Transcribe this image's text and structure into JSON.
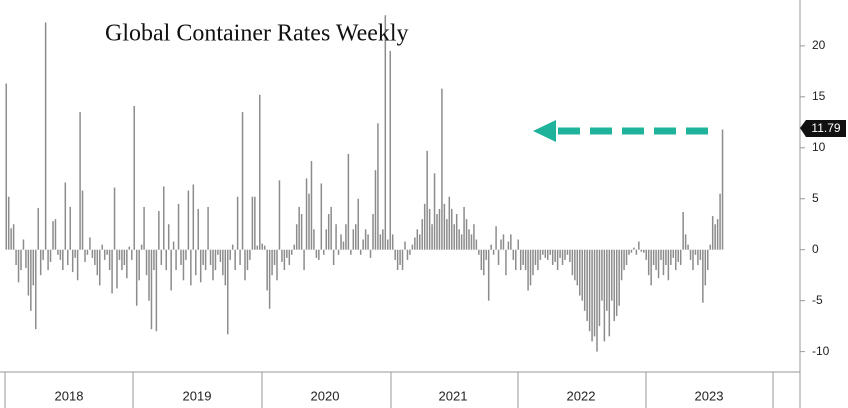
{
  "chart_data": {
    "type": "bar",
    "title": "Global Container Rates Weekly",
    "color": "#8c8c8c",
    "categories": [
      null,
      null,
      null,
      null,
      null,
      null,
      null,
      null,
      null,
      null,
      null,
      null,
      null,
      null,
      null,
      null,
      null,
      null,
      null,
      null,
      null,
      null,
      null,
      null,
      null,
      null,
      "2018",
      null,
      null,
      null,
      null,
      null,
      null,
      null,
      null,
      null,
      null,
      null,
      null,
      null,
      null,
      null,
      null,
      null,
      null,
      null,
      null,
      null,
      null,
      null,
      null,
      null,
      null,
      null,
      null,
      null,
      null,
      null,
      null,
      null,
      null,
      null,
      null,
      null,
      null,
      null,
      null,
      null,
      null,
      null,
      null,
      null,
      null,
      null,
      null,
      null,
      null,
      null,
      "2019",
      null,
      null,
      null,
      null,
      null,
      null,
      null,
      null,
      null,
      null,
      null,
      null,
      null,
      null,
      null,
      null,
      null,
      null,
      null,
      null,
      null,
      null,
      null,
      null,
      null,
      null,
      null,
      null,
      null,
      null,
      null,
      null,
      null,
      null,
      null,
      null,
      null,
      null,
      null,
      null,
      null,
      null,
      null,
      null,
      null,
      null,
      null,
      null,
      null,
      null,
      null,
      "2020",
      null,
      null,
      null,
      null,
      null,
      null,
      null,
      null,
      null,
      null,
      null,
      null,
      null,
      null,
      null,
      null,
      null,
      null,
      null,
      null,
      null,
      null,
      null,
      null,
      null,
      null,
      null,
      null,
      null,
      null,
      null,
      null,
      null,
      null,
      null,
      null,
      null,
      null,
      null,
      null,
      null,
      null,
      null,
      null,
      null,
      null,
      null,
      null,
      null,
      null,
      null,
      "2021",
      null,
      null,
      null,
      null,
      null,
      null,
      null,
      null,
      null,
      null,
      null,
      null,
      null,
      null,
      null,
      null,
      null,
      null,
      null,
      null,
      null,
      null,
      null,
      null,
      null,
      null,
      null,
      null,
      null,
      null,
      null,
      null,
      null,
      null,
      null,
      null,
      null,
      null,
      null,
      null,
      null,
      null,
      null,
      null,
      null,
      null,
      null,
      null,
      null,
      null,
      null,
      "2022",
      null,
      null,
      null,
      null,
      null,
      null,
      null,
      null,
      null,
      null,
      null,
      null,
      null,
      null,
      null,
      null,
      null,
      null,
      null,
      null,
      null,
      null,
      null,
      null,
      null,
      null,
      null,
      null,
      null,
      null,
      null,
      null,
      null,
      null,
      null,
      null,
      null,
      null,
      null,
      null,
      null,
      null,
      null,
      null,
      null,
      null,
      null,
      null,
      null,
      null,
      null,
      "2023",
      null,
      null,
      null,
      null,
      null
    ],
    "values": [
      16.3,
      5.2,
      2.1,
      2.5,
      -1.5,
      -3.2,
      -2.0,
      1.0,
      -1.8,
      -4.5,
      -6.0,
      -3.5,
      -7.8,
      4.1,
      -2.5,
      -1.0,
      22.3,
      -2.0,
      -1.2,
      2.8,
      3.0,
      -0.5,
      -1.0,
      -2.0,
      6.6,
      -1.5,
      4.2,
      -2.2,
      -0.8,
      -3.0,
      13.5,
      5.8,
      -1.2,
      -0.5,
      1.2,
      -0.8,
      -1.5,
      -2.5,
      -3.5,
      0.5,
      -1.0,
      -0.5,
      -2.0,
      -4.3,
      6.1,
      -3.8,
      -1.0,
      -2.0,
      -1.5,
      -2.8,
      0.3,
      -1.0,
      14.1,
      -5.5,
      -3.0,
      0.5,
      4.2,
      -2.5,
      -5.0,
      -7.8,
      -2.0,
      -8.0,
      3.8,
      -1.5,
      6.2,
      -2.0,
      2.5,
      -4.0,
      0.8,
      -2.0,
      4.5,
      -1.5,
      -3.0,
      -1.0,
      5.8,
      -3.5,
      6.4,
      -2.5,
      4.0,
      -3.2,
      -1.5,
      -2.0,
      4.2,
      -1.5,
      -3.0,
      -2.0,
      -0.5,
      -1.2,
      -2.5,
      -3.5,
      -8.3,
      -1.0,
      0.5,
      -2.0,
      5.2,
      -1.5,
      13.5,
      -3.0,
      -2.0,
      -1.0,
      5.2,
      5.2,
      0.4,
      15.2,
      0.6,
      0.4,
      -4.0,
      -5.8,
      -2.5,
      -1.5,
      -3.0,
      6.8,
      -1.2,
      -2.0,
      -0.8,
      -1.5,
      -0.5,
      0.5,
      2.5,
      4.2,
      3.5,
      -2.0,
      7.0,
      5.5,
      8.7,
      2.0,
      -0.8,
      -1.0,
      6.5,
      -0.5,
      2.0,
      3.5,
      4.2,
      -1.5,
      2.5,
      -0.5,
      1.5,
      0.8,
      2.5,
      9.4,
      -0.5,
      2.0,
      2.5,
      5.0,
      -0.5,
      1.0,
      2.0,
      1.5,
      -0.8,
      3.5,
      7.8,
      12.4,
      1.5,
      2.0,
      23.0,
      1.0,
      19.5,
      1.5,
      -1.0,
      -2.0,
      -1.5,
      -2.0,
      0.8,
      -1.0,
      -0.5,
      0.5,
      1.2,
      2.0,
      1.5,
      3.0,
      4.5,
      9.7,
      4.0,
      2.5,
      7.5,
      3.5,
      4.0,
      15.8,
      4.5,
      3.0,
      5.2,
      4.0,
      2.5,
      3.5,
      2.0,
      1.5,
      4.2,
      3.0,
      2.0,
      1.5,
      2.5,
      1.0,
      -0.5,
      -2.0,
      -2.5,
      -1.0,
      -5.0,
      0.5,
      -0.5,
      2.3,
      -1.5,
      1.0,
      1.5,
      -2.5,
      0.8,
      1.5,
      -1.0,
      -2.0,
      1.0,
      -2.0,
      -1.5,
      -2.0,
      -4.0,
      -3.5,
      -2.5,
      -1.5,
      -2.0,
      -1.0,
      -0.5,
      -0.8,
      -1.0,
      -0.5,
      -1.5,
      -1.2,
      -2.0,
      -0.8,
      -1.5,
      -1.0,
      -0.5,
      -1.2,
      -2.5,
      -3.0,
      -3.5,
      -4.5,
      -5.0,
      -6.0,
      -7.0,
      -8.0,
      -9.0,
      -8.5,
      -10.0,
      -7.5,
      -5.0,
      -9.0,
      -6.0,
      -8.5,
      -5.0,
      -7.0,
      -6.5,
      -5.5,
      -3.0,
      -2.0,
      -1.5,
      -0.5,
      -0.3,
      0.2,
      -0.5,
      0.8,
      -0.2,
      -0.3,
      -1.0,
      -2.5,
      -3.5,
      -1.5,
      -2.0,
      -2.8,
      -1.0,
      -2.5,
      -1.5,
      -3.0,
      -1.5,
      -0.8,
      -2.0,
      -1.2,
      -1.5,
      3.7,
      1.5,
      0.5,
      -1.0,
      -2.0,
      -0.5,
      -1.5,
      -1.0,
      -5.2,
      -3.5,
      -2.0,
      0.5,
      3.3,
      2.5,
      3.0,
      5.5,
      11.79
    ],
    "ylim": [
      -12,
      24.5
    ],
    "yticks": [
      -10,
      -5,
      0,
      5,
      10,
      15,
      20
    ]
  }
}
